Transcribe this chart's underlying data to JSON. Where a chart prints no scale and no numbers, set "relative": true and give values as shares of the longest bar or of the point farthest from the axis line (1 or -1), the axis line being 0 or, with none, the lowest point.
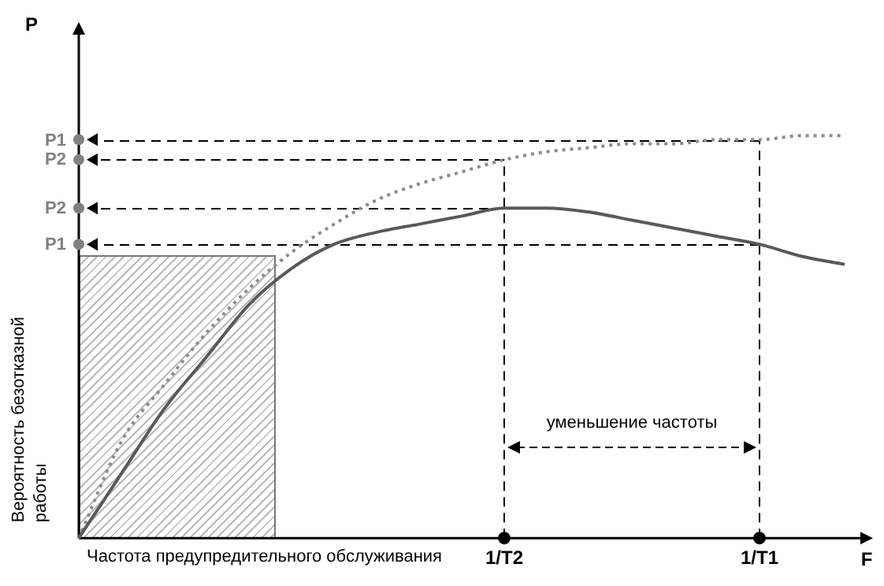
{
  "chart_data": {
    "type": "line",
    "relative": true,
    "xlabel": "Частота предупредительного обслуживания",
    "ylabel": "Вероятность безотказной работы",
    "annotations": [
      "P",
      "F",
      "уменьшение частоты"
    ],
    "categories": [
      null,
      null,
      null,
      null,
      null,
      null,
      null,
      null,
      null,
      null,
      "1/T2",
      null,
      null,
      null,
      null,
      null,
      "1/T1",
      null,
      null
    ],
    "series": [
      {
        "color": "#595959",
        "line_style": "solid",
        "values": [
          0,
          0.16,
          0.32,
          0.45,
          0.58,
          0.67,
          0.73,
          0.76,
          0.78,
          0.8,
          0.82,
          0.82,
          0.81,
          0.79,
          0.77,
          0.75,
          0.73,
          0.7,
          0.68
        ]
      },
      {
        "color": "#8c8c8c",
        "line_style": "dotted",
        "values": [
          0,
          0.24,
          0.38,
          0.51,
          0.62,
          0.71,
          0.78,
          0.84,
          0.88,
          0.91,
          0.94,
          0.96,
          0.97,
          0.98,
          0.98,
          0.99,
          0.99,
          1,
          1
        ]
      }
    ],
    "ref_lines": [
      {
        "axis": "y",
        "value": 0.99,
        "label": "P1"
      },
      {
        "axis": "y",
        "value": 0.94,
        "label": "P2"
      },
      {
        "axis": "y",
        "value": 0.82,
        "label": "P2"
      },
      {
        "axis": "y",
        "value": 0.73,
        "label": "P1"
      },
      {
        "axis": "x",
        "value": "1/T2",
        "label": null
      },
      {
        "axis": "x",
        "value": "1/T1",
        "label": null
      }
    ],
    "grid": false,
    "legend": false,
    "marker": "none"
  }
}
